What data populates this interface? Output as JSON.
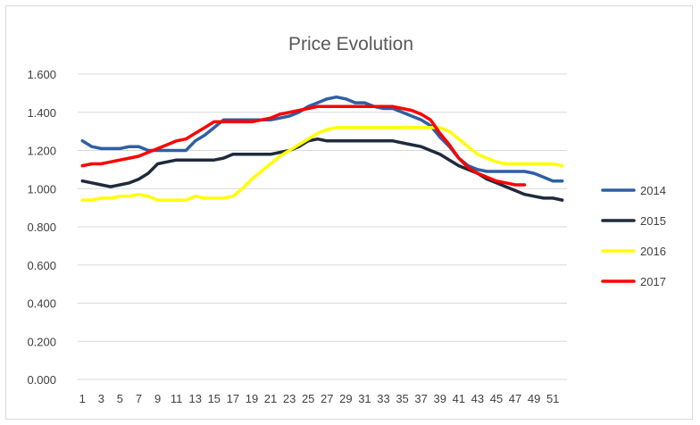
{
  "chart_data": {
    "type": "line",
    "title": "Price Evolution",
    "xlabel": "",
    "ylabel": "",
    "ylim": [
      0,
      1.6
    ],
    "yticks": [
      "0.000",
      "0.200",
      "0.400",
      "0.600",
      "0.800",
      "1.000",
      "1.200",
      "1.400",
      "1.600"
    ],
    "xlim": [
      1,
      52
    ],
    "xticks": [
      "1",
      "3",
      "5",
      "7",
      "9",
      "11",
      "13",
      "15",
      "17",
      "19",
      "21",
      "23",
      "25",
      "27",
      "29",
      "31",
      "33",
      "35",
      "37",
      "39",
      "41",
      "43",
      "45",
      "47",
      "49",
      "51"
    ],
    "grid": true,
    "legend_position": "right",
    "series": [
      {
        "name": "2014",
        "color": "#2e5fa3",
        "x": [
          1,
          2,
          3,
          4,
          5,
          6,
          7,
          8,
          9,
          10,
          11,
          12,
          13,
          14,
          15,
          16,
          17,
          18,
          19,
          20,
          21,
          22,
          23,
          24,
          25,
          26,
          27,
          28,
          29,
          30,
          31,
          32,
          33,
          34,
          35,
          36,
          37,
          38,
          39,
          40,
          41,
          42,
          43,
          44,
          45,
          46,
          47,
          48,
          49,
          50,
          51,
          52
        ],
        "y": [
          1.25,
          1.22,
          1.21,
          1.21,
          1.21,
          1.22,
          1.22,
          1.2,
          1.2,
          1.2,
          1.2,
          1.2,
          1.25,
          1.28,
          1.32,
          1.36,
          1.36,
          1.36,
          1.36,
          1.36,
          1.36,
          1.37,
          1.38,
          1.4,
          1.43,
          1.45,
          1.47,
          1.48,
          1.47,
          1.45,
          1.45,
          1.43,
          1.42,
          1.42,
          1.4,
          1.38,
          1.36,
          1.33,
          1.27,
          1.22,
          1.16,
          1.12,
          1.1,
          1.09,
          1.09,
          1.09,
          1.09,
          1.09,
          1.08,
          1.06,
          1.04,
          1.04
        ]
      },
      {
        "name": "2015",
        "color": "#1f2a3c",
        "x": [
          1,
          2,
          3,
          4,
          5,
          6,
          7,
          8,
          9,
          10,
          11,
          12,
          13,
          14,
          15,
          16,
          17,
          18,
          19,
          20,
          21,
          22,
          23,
          24,
          25,
          26,
          27,
          28,
          29,
          30,
          31,
          32,
          33,
          34,
          35,
          36,
          37,
          38,
          39,
          40,
          41,
          42,
          43,
          44,
          45,
          46,
          47,
          48,
          49,
          50,
          51,
          52
        ],
        "y": [
          1.04,
          1.03,
          1.02,
          1.01,
          1.02,
          1.03,
          1.05,
          1.08,
          1.13,
          1.14,
          1.15,
          1.15,
          1.15,
          1.15,
          1.15,
          1.16,
          1.18,
          1.18,
          1.18,
          1.18,
          1.18,
          1.19,
          1.2,
          1.22,
          1.25,
          1.26,
          1.25,
          1.25,
          1.25,
          1.25,
          1.25,
          1.25,
          1.25,
          1.25,
          1.24,
          1.23,
          1.22,
          1.2,
          1.18,
          1.15,
          1.12,
          1.1,
          1.08,
          1.05,
          1.03,
          1.01,
          0.99,
          0.97,
          0.96,
          0.95,
          0.95,
          0.94
        ]
      },
      {
        "name": "2016",
        "color": "#ffff00",
        "x": [
          1,
          2,
          3,
          4,
          5,
          6,
          7,
          8,
          9,
          10,
          11,
          12,
          13,
          14,
          15,
          16,
          17,
          18,
          19,
          20,
          21,
          22,
          23,
          24,
          25,
          26,
          27,
          28,
          29,
          30,
          31,
          32,
          33,
          34,
          35,
          36,
          37,
          38,
          39,
          40,
          41,
          42,
          43,
          44,
          45,
          46,
          47,
          48,
          49,
          50,
          51,
          52
        ],
        "y": [
          0.94,
          0.94,
          0.95,
          0.95,
          0.96,
          0.96,
          0.97,
          0.96,
          0.94,
          0.94,
          0.94,
          0.94,
          0.96,
          0.95,
          0.95,
          0.95,
          0.96,
          1.0,
          1.05,
          1.09,
          1.13,
          1.17,
          1.2,
          1.23,
          1.26,
          1.29,
          1.31,
          1.32,
          1.32,
          1.32,
          1.32,
          1.32,
          1.32,
          1.32,
          1.32,
          1.32,
          1.32,
          1.32,
          1.32,
          1.3,
          1.26,
          1.22,
          1.18,
          1.16,
          1.14,
          1.13,
          1.13,
          1.13,
          1.13,
          1.13,
          1.13,
          1.12
        ]
      },
      {
        "name": "2017",
        "color": "#ff0000",
        "x": [
          1,
          2,
          3,
          4,
          5,
          6,
          7,
          8,
          9,
          10,
          11,
          12,
          13,
          14,
          15,
          16,
          17,
          18,
          19,
          20,
          21,
          22,
          23,
          24,
          25,
          26,
          27,
          28,
          29,
          30,
          31,
          32,
          33,
          34,
          35,
          36,
          37,
          38,
          39,
          40,
          41,
          42,
          43,
          44,
          45,
          46,
          47,
          48
        ],
        "y": [
          1.12,
          1.13,
          1.13,
          1.14,
          1.15,
          1.16,
          1.17,
          1.19,
          1.21,
          1.23,
          1.25,
          1.26,
          1.29,
          1.32,
          1.35,
          1.35,
          1.35,
          1.35,
          1.35,
          1.36,
          1.37,
          1.39,
          1.4,
          1.41,
          1.42,
          1.43,
          1.43,
          1.43,
          1.43,
          1.43,
          1.43,
          1.43,
          1.43,
          1.43,
          1.42,
          1.41,
          1.39,
          1.36,
          1.29,
          1.23,
          1.16,
          1.11,
          1.08,
          1.06,
          1.04,
          1.03,
          1.02,
          1.02
        ]
      }
    ]
  }
}
